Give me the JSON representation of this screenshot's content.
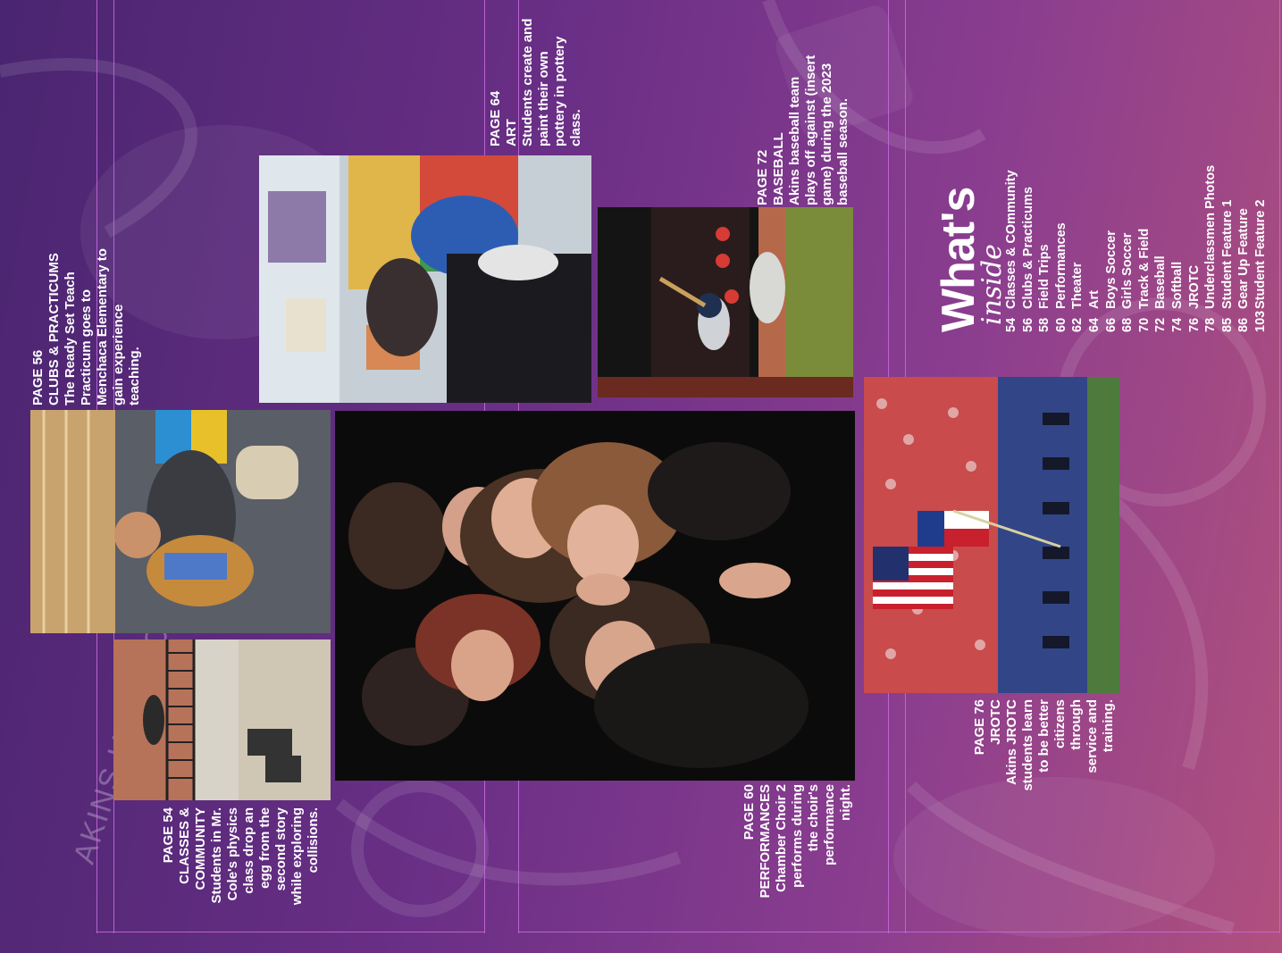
{
  "title": {
    "main": "What's",
    "script": "inside"
  },
  "toc": [
    {
      "page": "54",
      "name": "Classes & COmmunity"
    },
    {
      "page": "56",
      "name": "Clubs & Practicums"
    },
    {
      "page": "58",
      "name": "Field Trips"
    },
    {
      "page": "60",
      "name": "Performances"
    },
    {
      "page": "62",
      "name": "Theater"
    },
    {
      "page": "64",
      "name": "Art"
    },
    {
      "page": "66",
      "name": "Boys Soccer"
    },
    {
      "page": "68",
      "name": "Girls Soccer"
    },
    {
      "page": "70",
      "name": "Track & Field"
    },
    {
      "page": "72",
      "name": "Baseball"
    },
    {
      "page": "74",
      "name": "Softball"
    },
    {
      "page": "76",
      "name": "JROTC"
    },
    {
      "page": "78",
      "name": "Underclassmen Photos"
    },
    {
      "page": "85",
      "name": "Student Feature 1"
    },
    {
      "page": "86",
      "name": "Gear Up Feature"
    },
    {
      "page": "103",
      "name": "Student Feature 2"
    }
  ],
  "captions": {
    "clubs": [
      "PAGE 56",
      "CLUBS & PRACTICUMS",
      "The Ready Set Teach",
      "Practicum goes to",
      "Menchaca Elementary to",
      "gain experience",
      "teaching."
    ],
    "classes": [
      "PAGE 54",
      "CLASSES &",
      "COMMUNITY",
      "Students in Mr.",
      "Cole's physics",
      "class drop an",
      "egg from the",
      "second story",
      "while exploring",
      "collisions."
    ],
    "art": [
      "PAGE 64",
      "ART",
      "Students create and",
      "paint their own",
      "pottery in pottery",
      "class."
    ],
    "baseball": [
      "PAGE 72",
      "BASEBALL",
      "Akins baseball team",
      "plays off against (insert",
      "game) during the  2023",
      "baseball season."
    ],
    "performances": [
      "PAGE 60",
      "PERFORMANCES",
      "Chamber Choir 2",
      "performs during",
      "the choir's",
      "performance",
      "night."
    ],
    "jrotc": [
      "PAGE 76",
      "JROTC",
      "Akins JROTC",
      "students learn",
      "to be better",
      "citizens",
      "through",
      "service and",
      "training."
    ]
  },
  "background_text": "AKINS HIGH SCHOOL",
  "colors": {
    "bg_start": "#4a2570",
    "bg_end": "#b0507e",
    "guide": "#c86be0",
    "text": "#ffffff"
  }
}
